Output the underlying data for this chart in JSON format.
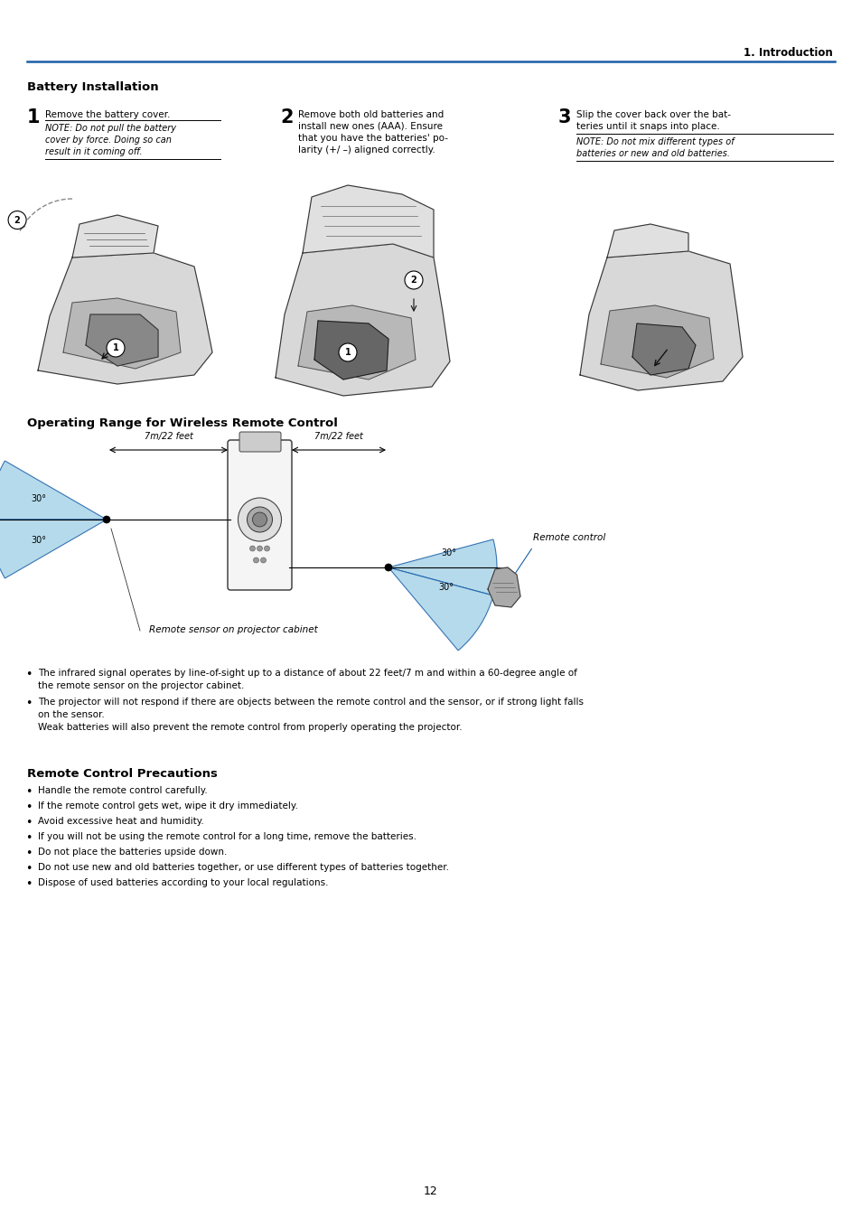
{
  "page_header_right": "1. Introduction",
  "header_line_color": "#1a5fa8",
  "page_number": "12",
  "background_color": "#ffffff",
  "text_color": "#000000",
  "section1_title": "Battery Installation",
  "section2_title": "Operating Range for Wireless Remote Control",
  "label_7m_left": "7m/22 feet",
  "label_7m_right": "7m/22 feet",
  "label_remote_sensor": "Remote sensor on projector cabinet",
  "label_remote_control": "Remote control",
  "bullet1_line1": "The infrared signal operates by line-of-sight up to a distance of about 22 feet/7 m and within a 60-degree angle of",
  "bullet1_line2": "the remote sensor on the projector cabinet.",
  "bullet2_line1": "The projector will not respond if there are objects between the remote control and the sensor, or if strong light falls",
  "bullet2_line2": "on the sensor.",
  "bullet2_line3": "Weak batteries will also prevent the remote control from properly operating the projector.",
  "section3_title": "Remote Control Precautions",
  "precaution1": "Handle the remote control carefully.",
  "precaution2": "If the remote control gets wet, wipe it dry immediately.",
  "precaution3": "Avoid excessive heat and humidity.",
  "precaution4": "If you will not be using the remote control for a long time, remove the batteries.",
  "precaution5": "Do not place the batteries upside down.",
  "precaution6": "Do not use new and old batteries together, or use different types of batteries together.",
  "precaution7": "Dispose of used batteries according to your local regulations.",
  "cyan_fill": "#a8d4e8",
  "blue_line": "#1a5fa8",
  "gray_remote": "#c8c8c8",
  "dark_gray": "#555555"
}
